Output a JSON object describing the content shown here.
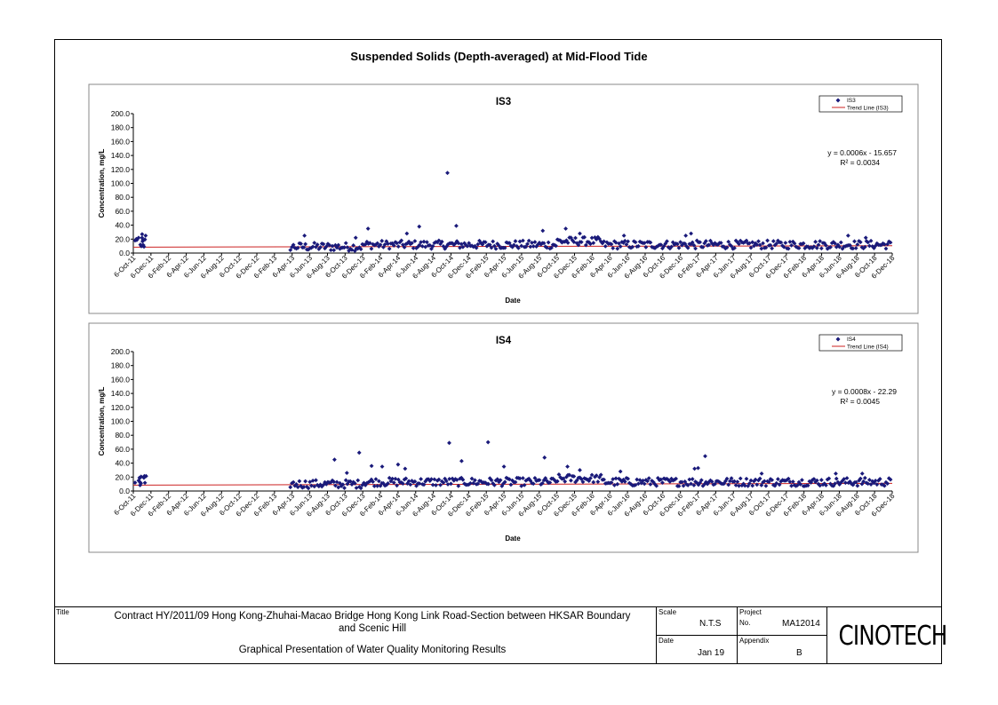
{
  "page_title": "Suspended Solids (Depth-averaged) at Mid-Flood Tide",
  "title_block": {
    "title_label": "Title",
    "title_line1": "Contract HY/2011/09 Hong Kong-Zhuhai-Macao Bridge Hong Kong Link Road-Section between HKSAR Boundary",
    "title_line2": "and Scenic Hill",
    "subtitle": "Graphical Presentation of Water Quality Monitoring Results",
    "scale_label": "Scale",
    "scale_value": "N.T.S",
    "project_label": "Project",
    "project_no_label": "No.",
    "project_value": "MA12014",
    "date_label": "Date",
    "date_value": "Jan 19",
    "appendix_label": "Appendix",
    "appendix_value": "B",
    "logo": "CINOTECH"
  },
  "colors": {
    "marker": "#1a1a7a",
    "trend": "#cc2222",
    "frame": "#000000"
  },
  "chart_data": [
    {
      "type": "scatter",
      "title": "IS3",
      "xlabel": "Date",
      "ylabel": "Concentration, mg/L",
      "ylim": [
        0,
        200
      ],
      "yticks": [
        "0.0",
        "20.0",
        "40.0",
        "60.0",
        "80.0",
        "100.0",
        "120.0",
        "140.0",
        "160.0",
        "180.0",
        "200.0"
      ],
      "xticks": [
        "6-Oct-11",
        "6-Dec-11",
        "6-Feb-12",
        "6-Apr-12",
        "6-Jun-12",
        "6-Aug-12",
        "6-Oct-12",
        "6-Dec-12",
        "6-Feb-13",
        "6-Apr-13",
        "6-Jun-13",
        "6-Aug-13",
        "6-Oct-13",
        "6-Dec-13",
        "6-Feb-14",
        "6-Apr-14",
        "6-Jun-14",
        "6-Aug-14",
        "6-Oct-14",
        "6-Dec-14",
        "6-Feb-15",
        "6-Apr-15",
        "6-Jun-15",
        "6-Aug-15",
        "6-Oct-15",
        "6-Dec-15",
        "6-Feb-16",
        "6-Apr-16",
        "6-Jun-16",
        "6-Aug-16",
        "6-Oct-16",
        "6-Dec-16",
        "6-Feb-17",
        "6-Apr-17",
        "6-Jun-17",
        "6-Aug-17",
        "6-Oct-17",
        "6-Dec-17",
        "6-Feb-18",
        "6-Apr-18",
        "6-Jun-18",
        "6-Aug-18",
        "6-Oct-18",
        "6-Dec-18"
      ],
      "legend": [
        "IS3",
        "Trend Line (IS3)"
      ],
      "legend_position": "top-right",
      "equation": "y = 0.0006x - 15.657",
      "r_squared": "R² = 0.0034",
      "trend": {
        "start": 8.5,
        "end": 10.5
      },
      "baseline": 9,
      "outliers": [
        {
          "x": 0.3,
          "y": 22
        },
        {
          "x": 0.5,
          "y": 27
        },
        {
          "x": 0.1,
          "y": 18
        },
        {
          "x": 0.7,
          "y": 25
        },
        {
          "x": 0.4,
          "y": 12
        },
        {
          "x": 13.3,
          "y": 35
        },
        {
          "x": 15.5,
          "y": 28
        },
        {
          "x": 16.2,
          "y": 38
        },
        {
          "x": 17.8,
          "y": 115
        },
        {
          "x": 18.3,
          "y": 39
        },
        {
          "x": 24.5,
          "y": 35
        },
        {
          "x": 23.2,
          "y": 32
        },
        {
          "x": 25.3,
          "y": 28
        },
        {
          "x": 27.8,
          "y": 25
        },
        {
          "x": 31.6,
          "y": 28
        },
        {
          "x": 31.3,
          "y": 25
        },
        {
          "x": 40.5,
          "y": 25
        },
        {
          "x": 41.5,
          "y": 22
        },
        {
          "x": 9.7,
          "y": 25
        },
        {
          "x": 12.6,
          "y": 22
        }
      ]
    },
    {
      "type": "scatter",
      "title": "IS4",
      "xlabel": "Date",
      "ylabel": "Concentration, mg/L",
      "ylim": [
        0,
        200
      ],
      "yticks": [
        "0.0",
        "20.0",
        "40.0",
        "60.0",
        "80.0",
        "100.0",
        "120.0",
        "140.0",
        "160.0",
        "180.0",
        "200.0"
      ],
      "xticks": [
        "6-Oct-11",
        "6-Dec-11",
        "6-Feb-12",
        "6-Apr-12",
        "6-Jun-12",
        "6-Aug-12",
        "6-Oct-12",
        "6-Dec-12",
        "6-Feb-13",
        "6-Apr-13",
        "6-Jun-13",
        "6-Aug-13",
        "6-Oct-13",
        "6-Dec-13",
        "6-Feb-14",
        "6-Apr-14",
        "6-Jun-14",
        "6-Aug-14",
        "6-Oct-14",
        "6-Dec-14",
        "6-Feb-15",
        "6-Apr-15",
        "6-Jun-15",
        "6-Aug-15",
        "6-Oct-15",
        "6-Dec-15",
        "6-Feb-16",
        "6-Apr-16",
        "6-Jun-16",
        "6-Aug-16",
        "6-Oct-16",
        "6-Dec-16",
        "6-Feb-17",
        "6-Apr-17",
        "6-Jun-17",
        "6-Aug-17",
        "6-Oct-17",
        "6-Dec-17",
        "6-Feb-18",
        "6-Apr-18",
        "6-Jun-18",
        "6-Aug-18",
        "6-Oct-18",
        "6-Dec-18"
      ],
      "legend": [
        "IS4",
        "Trend Line (IS4)"
      ],
      "legend_position": "top-right",
      "equation": "y = 0.0008x - 22.29",
      "r_squared": "R² = 0.0045",
      "trend": {
        "start": 8.5,
        "end": 11
      },
      "baseline": 10,
      "outliers": [
        {
          "x": 0.3,
          "y": 15
        },
        {
          "x": 0.6,
          "y": 19
        },
        {
          "x": 0.1,
          "y": 12
        },
        {
          "x": 11.4,
          "y": 45
        },
        {
          "x": 12.8,
          "y": 55
        },
        {
          "x": 13.5,
          "y": 36
        },
        {
          "x": 14.1,
          "y": 35
        },
        {
          "x": 15.0,
          "y": 38
        },
        {
          "x": 15.4,
          "y": 32
        },
        {
          "x": 17.9,
          "y": 69
        },
        {
          "x": 18.6,
          "y": 43
        },
        {
          "x": 20.1,
          "y": 70
        },
        {
          "x": 21.0,
          "y": 35
        },
        {
          "x": 23.3,
          "y": 48
        },
        {
          "x": 24.6,
          "y": 35
        },
        {
          "x": 25.3,
          "y": 30
        },
        {
          "x": 27.6,
          "y": 28
        },
        {
          "x": 31.8,
          "y": 32
        },
        {
          "x": 32.4,
          "y": 50
        },
        {
          "x": 32.0,
          "y": 33
        },
        {
          "x": 35.6,
          "y": 25
        },
        {
          "x": 39.8,
          "y": 25
        },
        {
          "x": 41.3,
          "y": 25
        },
        {
          "x": 12.1,
          "y": 26
        }
      ]
    }
  ]
}
